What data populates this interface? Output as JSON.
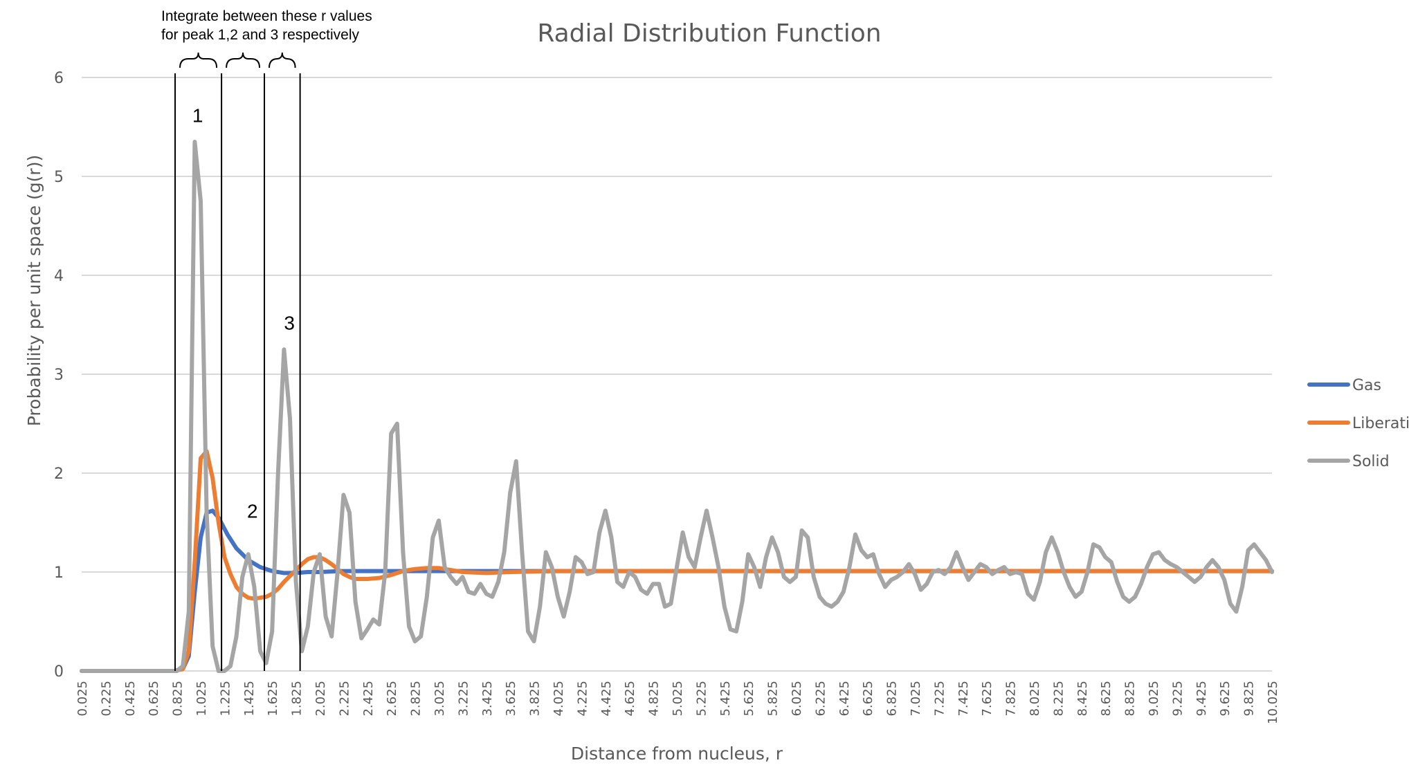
{
  "chart_data": {
    "type": "line",
    "title": "Radial Distribution Function",
    "xlabel": "Distance from nucleus, r",
    "ylabel": "Probability per unit space (g(r))",
    "ylim": [
      0,
      6
    ],
    "yticks": [
      "0",
      "1",
      "2",
      "3",
      "4",
      "5",
      "6"
    ],
    "xlim": [
      0.025,
      10.025
    ],
    "xticks": [
      "0.025",
      "0.225",
      "0.425",
      "0.625",
      "0.825",
      "1.025",
      "1.225",
      "1.425",
      "1.625",
      "1.825",
      "2.025",
      "2.225",
      "2.425",
      "2.625",
      "2.825",
      "3.025",
      "3.225",
      "3.425",
      "3.625",
      "3.825",
      "4.025",
      "4.225",
      "4.425",
      "4.625",
      "4.825",
      "5.025",
      "5.225",
      "5.425",
      "5.625",
      "5.825",
      "6.025",
      "6.225",
      "6.425",
      "6.625",
      "6.825",
      "7.025",
      "7.225",
      "7.425",
      "7.625",
      "7.825",
      "8.025",
      "8.225",
      "8.425",
      "8.625",
      "8.825",
      "9.025",
      "9.225",
      "9.425",
      "9.625",
      "9.825",
      "10.025"
    ],
    "grid": true,
    "legend_position": "right",
    "series": [
      {
        "name": "Gas",
        "color": "#4472C4",
        "points": [
          [
            0.025,
            0
          ],
          [
            0.8,
            0
          ],
          [
            0.875,
            0.02
          ],
          [
            0.925,
            0.15
          ],
          [
            0.975,
            0.8
          ],
          [
            1.025,
            1.35
          ],
          [
            1.075,
            1.6
          ],
          [
            1.125,
            1.62
          ],
          [
            1.175,
            1.55
          ],
          [
            1.25,
            1.38
          ],
          [
            1.325,
            1.24
          ],
          [
            1.425,
            1.12
          ],
          [
            1.525,
            1.05
          ],
          [
            1.625,
            1.01
          ],
          [
            1.725,
            0.99
          ],
          [
            1.825,
            0.99
          ],
          [
            1.925,
            1.0
          ],
          [
            2.025,
            1.0
          ],
          [
            2.2,
            1.01
          ],
          [
            10.025,
            1.01
          ]
        ]
      },
      {
        "name": "Liberation",
        "color": "#ED7D31",
        "points": [
          [
            0.025,
            0
          ],
          [
            0.8,
            0
          ],
          [
            0.875,
            0.02
          ],
          [
            0.925,
            0.2
          ],
          [
            0.975,
            1.1
          ],
          [
            1.025,
            2.15
          ],
          [
            1.075,
            2.22
          ],
          [
            1.125,
            1.95
          ],
          [
            1.175,
            1.5
          ],
          [
            1.225,
            1.15
          ],
          [
            1.275,
            0.98
          ],
          [
            1.325,
            0.85
          ],
          [
            1.375,
            0.78
          ],
          [
            1.425,
            0.74
          ],
          [
            1.475,
            0.73
          ],
          [
            1.525,
            0.74
          ],
          [
            1.575,
            0.75
          ],
          [
            1.625,
            0.78
          ],
          [
            1.675,
            0.83
          ],
          [
            1.725,
            0.9
          ],
          [
            1.775,
            0.96
          ],
          [
            1.825,
            1.02
          ],
          [
            1.875,
            1.08
          ],
          [
            1.925,
            1.13
          ],
          [
            1.975,
            1.15
          ],
          [
            2.025,
            1.15
          ],
          [
            2.075,
            1.12
          ],
          [
            2.125,
            1.08
          ],
          [
            2.175,
            1.03
          ],
          [
            2.225,
            0.98
          ],
          [
            2.275,
            0.95
          ],
          [
            2.325,
            0.93
          ],
          [
            2.425,
            0.93
          ],
          [
            2.525,
            0.94
          ],
          [
            2.625,
            0.97
          ],
          [
            2.725,
            1.01
          ],
          [
            2.825,
            1.03
          ],
          [
            2.925,
            1.04
          ],
          [
            3.025,
            1.04
          ],
          [
            3.125,
            1.02
          ],
          [
            3.225,
            1.0
          ],
          [
            3.425,
            0.99
          ],
          [
            3.625,
            1.0
          ],
          [
            4.025,
            1.01
          ],
          [
            10.025,
            1.01
          ]
        ]
      },
      {
        "name": "Solid",
        "color": "#A5A5A5",
        "points": [
          [
            0.025,
            0
          ],
          [
            0.825,
            0
          ],
          [
            0.875,
            0.05
          ],
          [
            0.925,
            0.6
          ],
          [
            0.975,
            5.35
          ],
          [
            1.025,
            4.75
          ],
          [
            1.075,
            1.6
          ],
          [
            1.125,
            0.25
          ],
          [
            1.175,
            0.0
          ],
          [
            1.225,
            0.0
          ],
          [
            1.275,
            0.05
          ],
          [
            1.325,
            0.35
          ],
          [
            1.375,
            0.95
          ],
          [
            1.425,
            1.18
          ],
          [
            1.475,
            0.85
          ],
          [
            1.525,
            0.2
          ],
          [
            1.575,
            0.08
          ],
          [
            1.625,
            0.4
          ],
          [
            1.675,
            2.0
          ],
          [
            1.725,
            3.25
          ],
          [
            1.775,
            2.55
          ],
          [
            1.825,
            0.9
          ],
          [
            1.875,
            0.2
          ],
          [
            1.925,
            0.45
          ],
          [
            1.975,
            1.0
          ],
          [
            2.025,
            1.18
          ],
          [
            2.075,
            0.55
          ],
          [
            2.125,
            0.35
          ],
          [
            2.175,
            1.0
          ],
          [
            2.225,
            1.78
          ],
          [
            2.275,
            1.6
          ],
          [
            2.325,
            0.7
          ],
          [
            2.375,
            0.33
          ],
          [
            2.425,
            0.42
          ],
          [
            2.475,
            0.52
          ],
          [
            2.525,
            0.47
          ],
          [
            2.575,
            1.0
          ],
          [
            2.625,
            2.4
          ],
          [
            2.675,
            2.5
          ],
          [
            2.725,
            1.2
          ],
          [
            2.775,
            0.45
          ],
          [
            2.825,
            0.3
          ],
          [
            2.875,
            0.35
          ],
          [
            2.925,
            0.75
          ],
          [
            2.975,
            1.35
          ],
          [
            3.025,
            1.52
          ],
          [
            3.075,
            1.05
          ],
          [
            3.125,
            0.95
          ],
          [
            3.175,
            0.88
          ],
          [
            3.225,
            0.95
          ],
          [
            3.275,
            0.8
          ],
          [
            3.325,
            0.78
          ],
          [
            3.375,
            0.88
          ],
          [
            3.425,
            0.78
          ],
          [
            3.475,
            0.75
          ],
          [
            3.525,
            0.9
          ],
          [
            3.575,
            1.2
          ],
          [
            3.625,
            1.8
          ],
          [
            3.675,
            2.12
          ],
          [
            3.725,
            1.2
          ],
          [
            3.775,
            0.4
          ],
          [
            3.825,
            0.3
          ],
          [
            3.875,
            0.65
          ],
          [
            3.925,
            1.2
          ],
          [
            3.975,
            1.05
          ],
          [
            4.025,
            0.75
          ],
          [
            4.075,
            0.55
          ],
          [
            4.125,
            0.8
          ],
          [
            4.175,
            1.15
          ],
          [
            4.225,
            1.1
          ],
          [
            4.275,
            0.98
          ],
          [
            4.325,
            1.0
          ],
          [
            4.375,
            1.4
          ],
          [
            4.425,
            1.62
          ],
          [
            4.475,
            1.35
          ],
          [
            4.525,
            0.9
          ],
          [
            4.575,
            0.85
          ],
          [
            4.625,
            1.0
          ],
          [
            4.675,
            0.95
          ],
          [
            4.725,
            0.82
          ],
          [
            4.775,
            0.78
          ],
          [
            4.825,
            0.88
          ],
          [
            4.875,
            0.88
          ],
          [
            4.925,
            0.65
          ],
          [
            4.975,
            0.68
          ],
          [
            5.025,
            1.05
          ],
          [
            5.075,
            1.4
          ],
          [
            5.125,
            1.15
          ],
          [
            5.175,
            1.05
          ],
          [
            5.225,
            1.35
          ],
          [
            5.275,
            1.62
          ],
          [
            5.325,
            1.35
          ],
          [
            5.375,
            1.05
          ],
          [
            5.425,
            0.65
          ],
          [
            5.475,
            0.42
          ],
          [
            5.525,
            0.4
          ],
          [
            5.575,
            0.7
          ],
          [
            5.625,
            1.18
          ],
          [
            5.675,
            1.05
          ],
          [
            5.725,
            0.85
          ],
          [
            5.775,
            1.15
          ],
          [
            5.825,
            1.35
          ],
          [
            5.875,
            1.2
          ],
          [
            5.925,
            0.95
          ],
          [
            5.975,
            0.9
          ],
          [
            6.025,
            0.95
          ],
          [
            6.075,
            1.42
          ],
          [
            6.125,
            1.35
          ],
          [
            6.175,
            0.95
          ],
          [
            6.225,
            0.75
          ],
          [
            6.275,
            0.68
          ],
          [
            6.325,
            0.65
          ],
          [
            6.375,
            0.7
          ],
          [
            6.425,
            0.8
          ],
          [
            6.475,
            1.05
          ],
          [
            6.525,
            1.38
          ],
          [
            6.575,
            1.22
          ],
          [
            6.625,
            1.15
          ],
          [
            6.675,
            1.18
          ],
          [
            6.725,
            0.98
          ],
          [
            6.775,
            0.85
          ],
          [
            6.825,
            0.92
          ],
          [
            6.875,
            0.95
          ],
          [
            6.925,
            1.0
          ],
          [
            6.975,
            1.08
          ],
          [
            7.025,
            0.98
          ],
          [
            7.075,
            0.82
          ],
          [
            7.125,
            0.88
          ],
          [
            7.175,
            1.0
          ],
          [
            7.225,
            1.02
          ],
          [
            7.275,
            0.98
          ],
          [
            7.325,
            1.05
          ],
          [
            7.375,
            1.2
          ],
          [
            7.425,
            1.05
          ],
          [
            7.475,
            0.92
          ],
          [
            7.525,
            1.0
          ],
          [
            7.575,
            1.08
          ],
          [
            7.625,
            1.05
          ],
          [
            7.675,
            0.98
          ],
          [
            7.725,
            1.02
          ],
          [
            7.775,
            1.05
          ],
          [
            7.825,
            0.98
          ],
          [
            7.875,
            1.0
          ],
          [
            7.925,
            0.98
          ],
          [
            7.975,
            0.78
          ],
          [
            8.025,
            0.72
          ],
          [
            8.075,
            0.9
          ],
          [
            8.125,
            1.2
          ],
          [
            8.175,
            1.35
          ],
          [
            8.225,
            1.2
          ],
          [
            8.275,
            1.0
          ],
          [
            8.325,
            0.85
          ],
          [
            8.375,
            0.75
          ],
          [
            8.425,
            0.8
          ],
          [
            8.475,
            1.0
          ],
          [
            8.525,
            1.28
          ],
          [
            8.575,
            1.25
          ],
          [
            8.625,
            1.15
          ],
          [
            8.675,
            1.1
          ],
          [
            8.725,
            0.9
          ],
          [
            8.775,
            0.75
          ],
          [
            8.825,
            0.7
          ],
          [
            8.875,
            0.75
          ],
          [
            8.925,
            0.88
          ],
          [
            8.975,
            1.05
          ],
          [
            9.025,
            1.18
          ],
          [
            9.075,
            1.2
          ],
          [
            9.125,
            1.12
          ],
          [
            9.175,
            1.08
          ],
          [
            9.225,
            1.05
          ],
          [
            9.275,
            1.0
          ],
          [
            9.325,
            0.95
          ],
          [
            9.375,
            0.9
          ],
          [
            9.425,
            0.95
          ],
          [
            9.475,
            1.05
          ],
          [
            9.525,
            1.12
          ],
          [
            9.575,
            1.05
          ],
          [
            9.625,
            0.92
          ],
          [
            9.675,
            0.68
          ],
          [
            9.725,
            0.6
          ],
          [
            9.775,
            0.85
          ],
          [
            9.825,
            1.22
          ],
          [
            9.875,
            1.28
          ],
          [
            9.925,
            1.2
          ],
          [
            9.975,
            1.12
          ],
          [
            10.025,
            1.0
          ]
        ]
      }
    ],
    "annotations": {
      "note_lines": [
        "Integrate between these r values",
        "for peak 1,2 and 3 respectively"
      ],
      "peak_labels": [
        {
          "text": "1",
          "r": 1.0,
          "g": 5.55
        },
        {
          "text": "2",
          "r": 1.46,
          "g": 1.55
        },
        {
          "text": "3",
          "r": 1.77,
          "g": 3.45
        }
      ],
      "boundary_r": [
        0.81,
        1.2,
        1.56,
        1.86
      ],
      "boundary_top_g": 6.0
    }
  }
}
